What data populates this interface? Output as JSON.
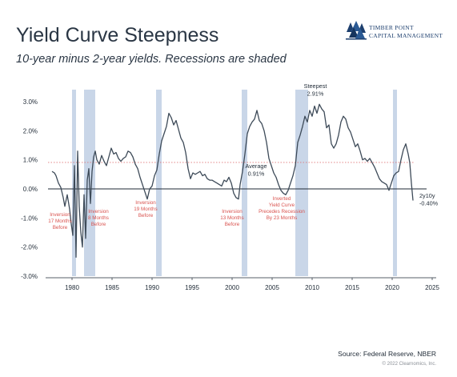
{
  "header": {
    "title": "Yield Curve Steepness",
    "subtitle": "10-year minus 2-year yields. Recessions are shaded"
  },
  "logo": {
    "name_line1": "TIMBER POINT",
    "name_line2": "CAPITAL MANAGEMENT",
    "icon": "tree-cluster-icon"
  },
  "footer": {
    "source": "Source: Federal Reserve, NBER",
    "copyright": "© 2022 Clearnomics, Inc."
  },
  "colors": {
    "line": "#3d4a58",
    "recession": "#c9d6e8",
    "annotation_red": "#d9534f",
    "average_line": "#e0777a",
    "zero_line": "#1f2a36",
    "text": "#1f2a36"
  },
  "chart_data": {
    "type": "line",
    "title": "Yield Curve Steepness",
    "subtitle": "10-year minus 2-year yields. Recessions are shaded",
    "xlabel": "",
    "ylabel": "",
    "xlim": [
      1976.5,
      2025.5
    ],
    "ylim": [
      -3.0,
      3.0
    ],
    "x_ticks": [
      1980,
      1985,
      1990,
      1995,
      2000,
      2005,
      2010,
      2015,
      2020,
      2025
    ],
    "y_ticks": [
      {
        "value": 3,
        "label": "3.0%"
      },
      {
        "value": 2,
        "label": "2.0%"
      },
      {
        "value": 1,
        "label": "1.0%"
      },
      {
        "value": 0,
        "label": "0.0%"
      },
      {
        "value": -1,
        "label": "-1.0%"
      },
      {
        "value": -2,
        "label": "-2.0%"
      },
      {
        "value": -3,
        "label": "-3.0%"
      }
    ],
    "grid": false,
    "average": {
      "value": 0.91
    },
    "recessions": [
      [
        1980.0,
        1980.5
      ],
      [
        1981.5,
        1982.9
      ],
      [
        1990.5,
        1991.2
      ],
      [
        2001.2,
        2001.9
      ],
      [
        2007.9,
        2009.5
      ],
      [
        2020.1,
        2020.4
      ]
    ],
    "series": [
      {
        "x": [
          1977.5,
          1977.8,
          1978.0,
          1978.3,
          1978.6,
          1978.9,
          1979.1,
          1979.4,
          1979.7,
          1979.9,
          1980.1,
          1980.3,
          1980.5,
          1980.7,
          1980.9,
          1981.1,
          1981.3,
          1981.5,
          1981.7,
          1981.9,
          1982.1,
          1982.3,
          1982.5,
          1982.7,
          1982.9,
          1983.1,
          1983.4,
          1983.7,
          1984.0,
          1984.3,
          1984.6,
          1984.9,
          1985.2,
          1985.5,
          1985.8,
          1986.1,
          1986.4,
          1986.7,
          1987.0,
          1987.3,
          1987.6,
          1987.9,
          1988.2,
          1988.5,
          1988.8,
          1989.1,
          1989.4,
          1989.7,
          1990.0,
          1990.3,
          1990.6,
          1990.9,
          1991.2,
          1991.5,
          1991.8,
          1992.1,
          1992.4,
          1992.7,
          1993.0,
          1993.3,
          1993.6,
          1993.9,
          1994.2,
          1994.5,
          1994.8,
          1995.1,
          1995.4,
          1995.7,
          1996.0,
          1996.3,
          1996.6,
          1996.9,
          1997.2,
          1997.5,
          1997.8,
          1998.1,
          1998.4,
          1998.7,
          1999.0,
          1999.3,
          1999.6,
          1999.9,
          2000.2,
          2000.5,
          2000.8,
          2001.0,
          2001.3,
          2001.6,
          2001.9,
          2002.2,
          2002.5,
          2002.8,
          2003.1,
          2003.4,
          2003.7,
          2004.0,
          2004.3,
          2004.6,
          2004.9,
          2005.2,
          2005.5,
          2005.8,
          2006.1,
          2006.4,
          2006.7,
          2007.0,
          2007.3,
          2007.6,
          2007.9,
          2008.2,
          2008.5,
          2008.8,
          2009.1,
          2009.4,
          2009.7,
          2010.0,
          2010.3,
          2010.6,
          2010.9,
          2011.2,
          2011.5,
          2011.8,
          2012.1,
          2012.4,
          2012.7,
          2013.0,
          2013.3,
          2013.6,
          2013.9,
          2014.2,
          2014.5,
          2014.8,
          2015.1,
          2015.4,
          2015.7,
          2016.0,
          2016.3,
          2016.6,
          2016.9,
          2017.2,
          2017.5,
          2017.8,
          2018.1,
          2018.4,
          2018.7,
          2019.0,
          2019.3,
          2019.6,
          2019.9,
          2020.2,
          2020.5,
          2020.8,
          2021.1,
          2021.4,
          2021.7,
          2022.0,
          2022.2,
          2022.4,
          2022.6
        ],
        "values": [
          0.6,
          0.55,
          0.45,
          0.2,
          0.05,
          -0.3,
          -0.6,
          -0.2,
          -0.7,
          -1.2,
          -1.6,
          0.8,
          -2.35,
          1.3,
          -0.6,
          -1.5,
          -2.0,
          -0.2,
          -1.7,
          0.3,
          0.7,
          -0.5,
          0.6,
          1.1,
          1.3,
          1.0,
          0.85,
          1.15,
          0.95,
          0.8,
          1.1,
          1.4,
          1.2,
          1.25,
          1.05,
          0.95,
          1.05,
          1.1,
          1.3,
          1.25,
          1.1,
          0.85,
          0.7,
          0.4,
          0.15,
          -0.1,
          -0.35,
          0.0,
          0.1,
          0.45,
          0.65,
          1.2,
          1.65,
          1.9,
          2.15,
          2.6,
          2.45,
          2.2,
          2.35,
          2.05,
          1.75,
          1.6,
          1.25,
          0.7,
          0.35,
          0.55,
          0.5,
          0.55,
          0.6,
          0.45,
          0.5,
          0.35,
          0.3,
          0.3,
          0.25,
          0.2,
          0.15,
          0.1,
          0.3,
          0.25,
          0.4,
          0.2,
          -0.15,
          -0.3,
          -0.35,
          0.15,
          0.6,
          1.2,
          1.9,
          2.15,
          2.3,
          2.4,
          2.7,
          2.35,
          2.25,
          2.0,
          1.6,
          1.05,
          0.8,
          0.55,
          0.4,
          0.15,
          -0.05,
          -0.15,
          -0.2,
          -0.05,
          0.2,
          0.45,
          0.8,
          1.6,
          1.85,
          2.15,
          2.5,
          2.3,
          2.7,
          2.5,
          2.85,
          2.6,
          2.91,
          2.75,
          2.65,
          2.1,
          2.2,
          1.55,
          1.4,
          1.55,
          1.85,
          2.3,
          2.5,
          2.4,
          2.1,
          1.95,
          1.7,
          1.45,
          1.55,
          1.3,
          1.0,
          1.05,
          0.95,
          1.05,
          0.9,
          0.75,
          0.55,
          0.35,
          0.25,
          0.2,
          0.15,
          -0.05,
          0.2,
          0.45,
          0.55,
          0.6,
          1.0,
          1.35,
          1.55,
          1.2,
          0.9,
          0.2,
          -0.4
        ]
      }
    ],
    "annotations": [
      {
        "x": 1978.5,
        "lines": [
          "Inversion",
          "17 Months",
          "Before"
        ],
        "color": "red"
      },
      {
        "x": 1983.3,
        "lines": [
          "Inversion",
          "8 Months",
          "Before"
        ],
        "color": "red"
      },
      {
        "x": 1989.2,
        "lines": [
          "Inversion",
          "19 Months",
          "Before"
        ],
        "color": "red"
      },
      {
        "x": 2000.0,
        "lines": [
          "Inversion",
          "13 Months",
          "Before"
        ],
        "color": "red"
      },
      {
        "x": 2006.2,
        "lines": [
          "Inverted",
          "Yield Curve",
          "Precedes Recession",
          "By 23 Months"
        ],
        "color": "red"
      },
      {
        "x": 2003.0,
        "lines": [
          "Average",
          "0.91%"
        ],
        "color": "dark"
      },
      {
        "x": 2010.4,
        "lines": [
          "Steepest",
          "2.91%"
        ],
        "color": "dark"
      },
      {
        "x": 2023.2,
        "lines": [
          "2y10y",
          "-0.40%"
        ],
        "color": "dark"
      }
    ]
  }
}
